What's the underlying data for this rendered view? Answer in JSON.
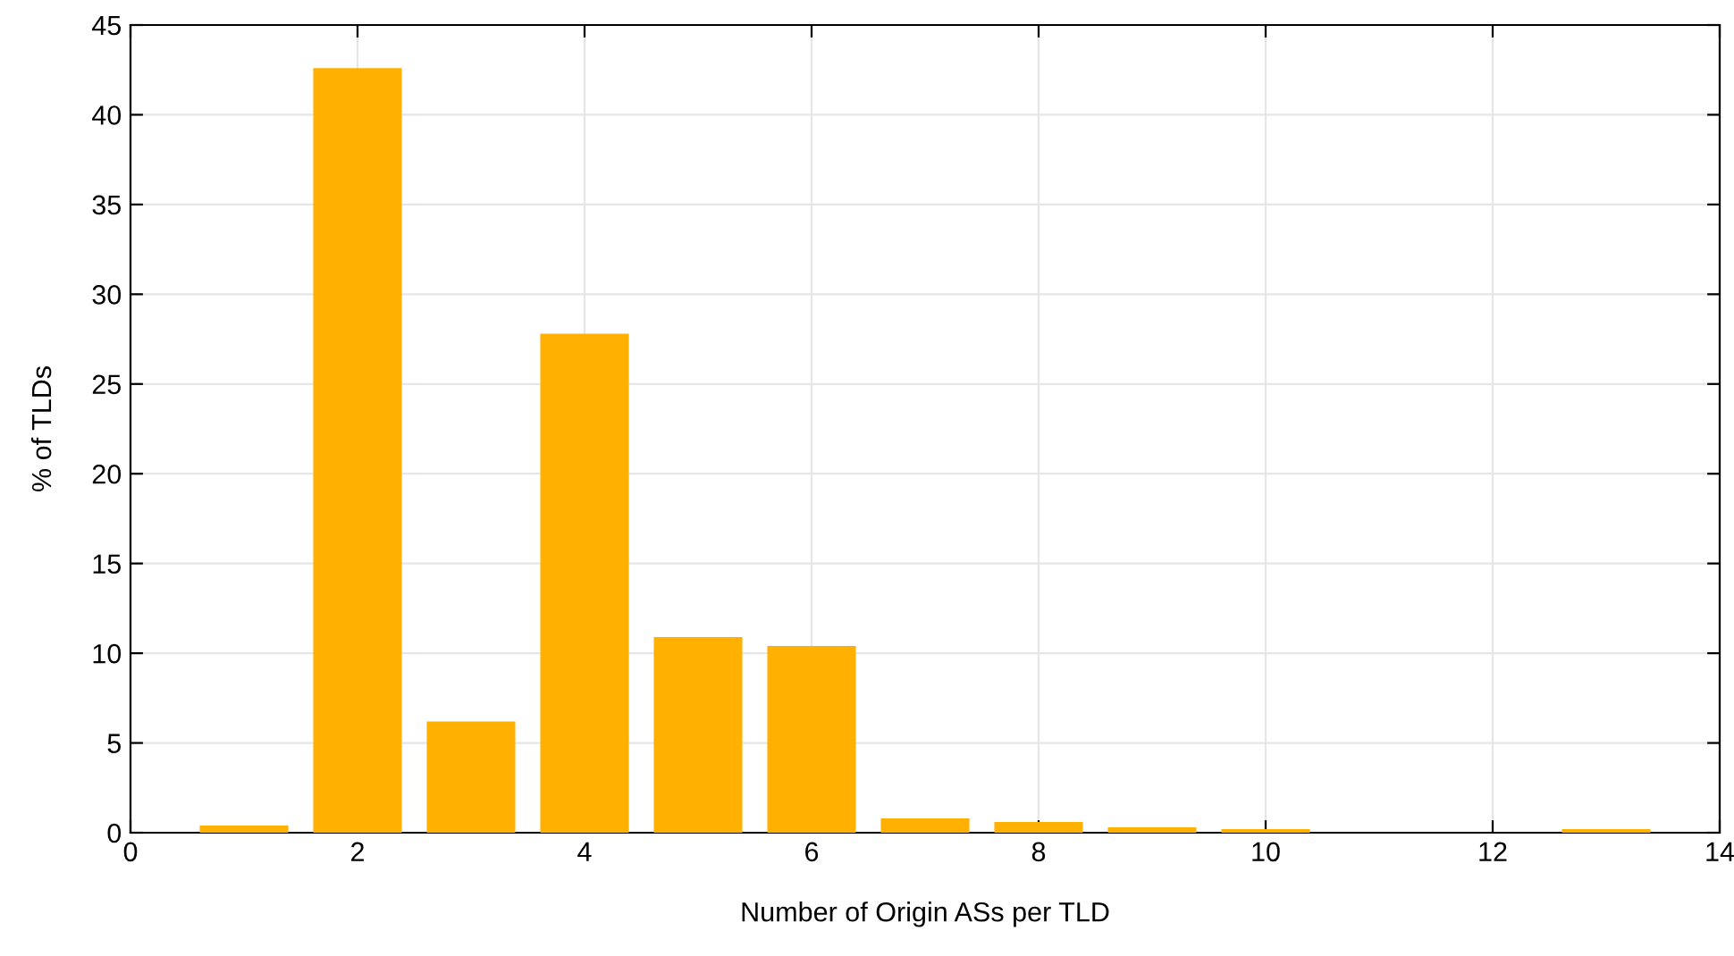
{
  "chart_data": {
    "type": "bar",
    "xlabel": "Number of Origin ASs per TLD",
    "ylabel": "% of TLDs",
    "x": [
      1,
      2,
      3,
      4,
      5,
      6,
      7,
      8,
      9,
      10,
      11,
      12,
      13
    ],
    "values": [
      0.4,
      42.6,
      6.2,
      27.8,
      10.9,
      10.4,
      0.8,
      0.6,
      0.3,
      0.2,
      0,
      0,
      0.2
    ],
    "color": "#ffb000",
    "xlim": [
      0,
      14
    ],
    "xticks": [
      0,
      2,
      4,
      6,
      8,
      10,
      12,
      14
    ],
    "ylim": [
      0,
      45
    ],
    "yticks": [
      0,
      5,
      10,
      15,
      20,
      25,
      30,
      35,
      40,
      45
    ],
    "grid": true,
    "legend": false
  }
}
